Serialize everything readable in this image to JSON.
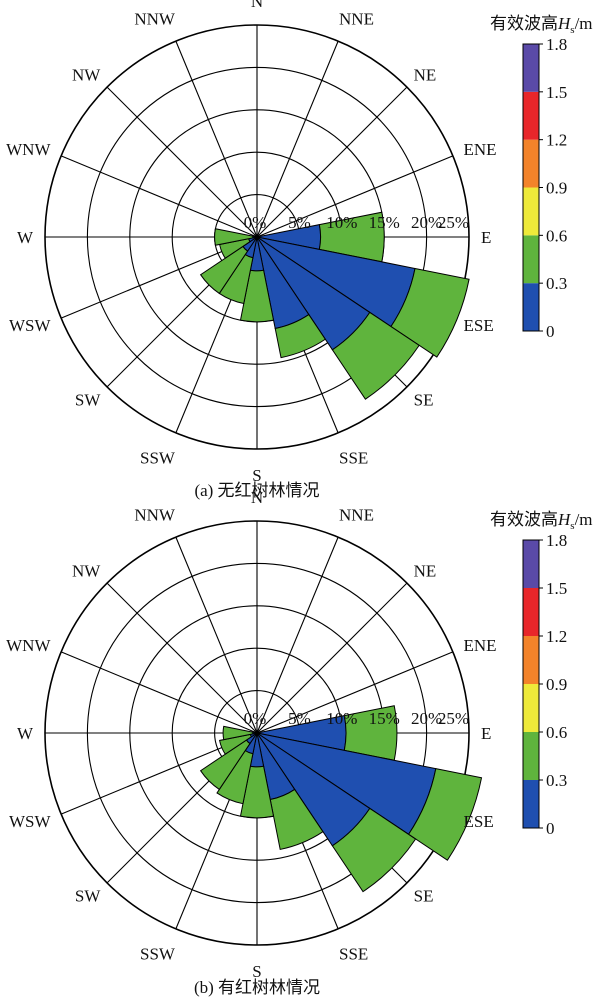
{
  "chart_data": [
    {
      "type": "windrose",
      "caption": "(a) 无红树林情况",
      "directions": [
        "N",
        "NNE",
        "NE",
        "ENE",
        "E",
        "ESE",
        "SE",
        "SSE",
        "S",
        "SSW",
        "SW",
        "WSW",
        "W",
        "WNW",
        "NW",
        "NNW"
      ],
      "radial_ticks": [
        "0%",
        "5%",
        "10%",
        "15%",
        "20%",
        "25%"
      ],
      "rmax_percent": 25,
      "legend": {
        "title_prefix": "有效波高",
        "title_symbol": "H",
        "title_sub": "s",
        "title_unit": "/m",
        "tick_labels": [
          "0",
          "0.3",
          "0.6",
          "0.9",
          "1.2",
          "1.5",
          "1.8"
        ],
        "colors": [
          "#1f4fb0",
          "#5fb43d",
          "#eeea3a",
          "#f3832a",
          "#e8262a",
          "#5a4aa8"
        ]
      },
      "series_bins": [
        "0-0.3",
        "0.3-0.6",
        "0.6-0.9",
        "0.9-1.2",
        "1.2-1.5",
        "1.5-1.8"
      ],
      "values": [
        [
          0,
          0,
          0,
          0,
          0,
          0
        ],
        [
          0,
          0,
          0,
          0,
          0,
          0
        ],
        [
          0,
          0,
          0,
          0,
          0,
          0
        ],
        [
          0,
          0,
          0,
          0,
          0,
          0
        ],
        [
          7.5,
          15.0,
          0,
          0,
          0,
          0
        ],
        [
          19.0,
          25.5,
          0,
          0,
          0,
          0
        ],
        [
          16.0,
          23.0,
          0,
          0,
          0,
          0
        ],
        [
          11.0,
          14.5,
          0.3,
          0,
          0,
          0
        ],
        [
          4.0,
          10.0,
          0.3,
          0,
          0,
          0
        ],
        [
          2.5,
          8.0,
          0.3,
          0,
          0,
          0
        ],
        [
          2.0,
          8.0,
          0.3,
          0,
          0,
          0
        ],
        [
          1.0,
          4.5,
          0.2,
          0,
          0,
          0
        ],
        [
          0.5,
          5.0,
          0.2,
          0,
          0,
          0
        ],
        [
          0,
          0,
          0,
          0,
          0,
          0
        ],
        [
          0,
          0,
          0,
          0,
          0,
          0
        ],
        [
          0,
          0,
          0,
          0,
          0,
          0
        ]
      ]
    },
    {
      "type": "windrose",
      "caption": "(b) 有红树林情况",
      "directions": [
        "N",
        "NNE",
        "NE",
        "ENE",
        "E",
        "ESE",
        "SE",
        "SSE",
        "S",
        "SSW",
        "SW",
        "WSW",
        "W",
        "WNW",
        "NW",
        "NNW"
      ],
      "radial_ticks": [
        "0%",
        "5%",
        "10%",
        "15%",
        "20%",
        "25%"
      ],
      "rmax_percent": 25,
      "legend": {
        "title_prefix": "有效波高",
        "title_symbol": "H",
        "title_sub": "s",
        "title_unit": "/m",
        "tick_labels": [
          "0",
          "0.3",
          "0.6",
          "0.9",
          "1.2",
          "1.5",
          "1.8"
        ],
        "colors": [
          "#1f4fb0",
          "#5fb43d",
          "#eeea3a",
          "#f3832a",
          "#e8262a",
          "#5a4aa8"
        ]
      },
      "series_bins": [
        "0-0.3",
        "0.3-0.6",
        "0.6-0.9",
        "0.9-1.2",
        "1.2-1.5",
        "1.5-1.8"
      ],
      "values": [
        [
          0,
          0,
          0,
          0,
          0,
          0
        ],
        [
          0,
          0,
          0,
          0,
          0,
          0
        ],
        [
          0,
          0,
          0,
          0,
          0,
          0
        ],
        [
          0,
          0,
          0,
          0,
          0,
          0
        ],
        [
          10.5,
          16.5,
          0,
          0,
          0,
          0
        ],
        [
          21.5,
          27.0,
          0,
          0,
          0,
          0
        ],
        [
          16.0,
          22.5,
          0,
          0,
          0,
          0
        ],
        [
          8.0,
          14.0,
          0,
          0,
          0,
          0
        ],
        [
          4.0,
          10.0,
          0,
          0,
          0,
          0
        ],
        [
          2.5,
          8.5,
          0,
          0,
          0,
          0
        ],
        [
          1.5,
          8.0,
          0,
          0,
          0,
          0
        ],
        [
          0.8,
          4.5,
          0,
          0,
          0,
          0
        ],
        [
          0.5,
          4.0,
          0,
          0,
          0,
          0
        ],
        [
          0,
          0,
          0,
          0,
          0,
          0
        ],
        [
          0,
          0,
          0,
          0,
          0,
          0
        ],
        [
          0,
          0,
          0,
          0,
          0,
          0
        ]
      ]
    }
  ]
}
